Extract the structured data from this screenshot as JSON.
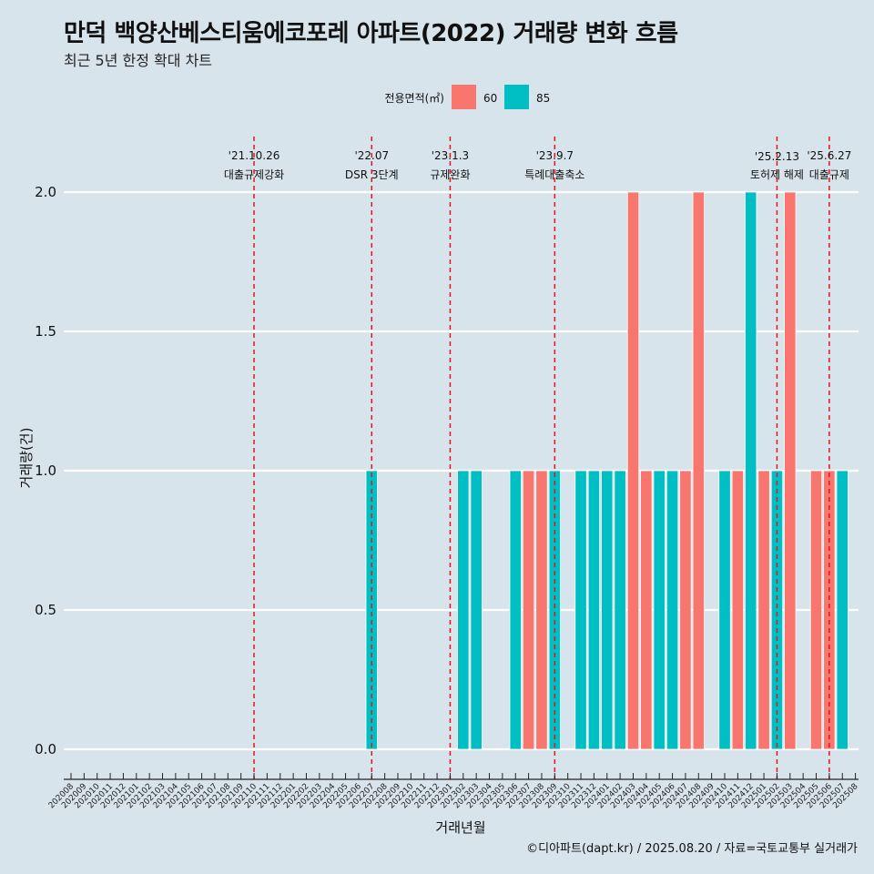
{
  "header": {
    "title": "만덕 백양산베스티움에코포레 아파트(2022) 거래량 변화 흐름",
    "subtitle": "최근 5년 한정 확대 차트"
  },
  "caption": "©디아파트(dapt.kr) / 2025.08.20 / 자료=국토교통부 실거래가",
  "chart_data": {
    "type": "bar",
    "xlabel": "거래년월",
    "ylabel": "거래량(건)",
    "ylim": [
      0,
      2
    ],
    "yticks": [
      0.0,
      0.5,
      1.0,
      1.5,
      2.0
    ],
    "ytick_labels": [
      "0.0",
      "0.5",
      "1.0",
      "1.5",
      "2.0"
    ],
    "grid": true,
    "legend": {
      "title": "전용면적(㎡)",
      "position": "top",
      "entries": [
        {
          "label": "60",
          "color": "#f8766d"
        },
        {
          "label": "85",
          "color": "#00bfc4"
        }
      ]
    },
    "categories": [
      "202008",
      "202009",
      "202010",
      "202011",
      "202012",
      "202101",
      "202102",
      "202103",
      "202104",
      "202105",
      "202106",
      "202107",
      "202108",
      "202109",
      "202110",
      "202111",
      "202112",
      "202201",
      "202202",
      "202203",
      "202204",
      "202205",
      "202206",
      "202207",
      "202208",
      "202209",
      "202210",
      "202211",
      "202212",
      "202301",
      "202302",
      "202303",
      "202304",
      "202305",
      "202306",
      "202307",
      "202308",
      "202309",
      "202310",
      "202311",
      "202312",
      "202401",
      "202402",
      "202403",
      "202404",
      "202405",
      "202406",
      "202407",
      "202408",
      "202409",
      "202410",
      "202411",
      "202412",
      "202501",
      "202502",
      "202503",
      "202504",
      "202505",
      "202506",
      "202507",
      "202508"
    ],
    "bars": [
      {
        "month": "202207",
        "series": "85",
        "value": 1
      },
      {
        "month": "202302",
        "series": "85",
        "value": 1
      },
      {
        "month": "202303",
        "series": "85",
        "value": 1
      },
      {
        "month": "202306",
        "series": "85",
        "value": 1
      },
      {
        "month": "202307",
        "series": "60",
        "value": 1
      },
      {
        "month": "202308",
        "series": "60",
        "value": 1
      },
      {
        "month": "202309",
        "series": "85",
        "value": 1
      },
      {
        "month": "202311",
        "series": "85",
        "value": 1
      },
      {
        "month": "202312",
        "series": "85",
        "value": 1
      },
      {
        "month": "202401",
        "series": "85",
        "value": 1
      },
      {
        "month": "202402",
        "series": "85",
        "value": 1
      },
      {
        "month": "202403",
        "series": "60",
        "value": 2
      },
      {
        "month": "202404",
        "series": "60",
        "value": 1
      },
      {
        "month": "202405",
        "series": "85",
        "value": 1
      },
      {
        "month": "202406",
        "series": "85",
        "value": 1
      },
      {
        "month": "202407",
        "series": "60",
        "value": 1
      },
      {
        "month": "202408",
        "series": "60",
        "value": 2
      },
      {
        "month": "202410",
        "series": "85",
        "value": 1
      },
      {
        "month": "202411",
        "series": "60",
        "value": 1
      },
      {
        "month": "202412",
        "series": "85",
        "value": 2
      },
      {
        "month": "202501",
        "series": "60",
        "value": 1
      },
      {
        "month": "202502",
        "series": "85",
        "value": 1
      },
      {
        "month": "202503",
        "series": "60",
        "value": 2
      },
      {
        "month": "202505",
        "series": "60",
        "value": 1
      },
      {
        "month": "202506",
        "series": "60",
        "value": 1
      },
      {
        "month": "202507",
        "series": "85",
        "value": 1
      }
    ],
    "events": [
      {
        "month": "202110",
        "date": "'21.10.26",
        "label": "대출규제강화"
      },
      {
        "month": "202207",
        "date": "'22.07",
        "label": "DSR 3단계"
      },
      {
        "month": "202301",
        "date": "'23.1.3",
        "label": "규제완화"
      },
      {
        "month": "202309",
        "date": "'23.9.7",
        "label": "특례대출축소"
      },
      {
        "month": "202502",
        "date": "'25.2.13",
        "label": "토허제 해제"
      },
      {
        "month": "202506",
        "date": "'25.6.27",
        "label": "대출규제"
      }
    ]
  }
}
